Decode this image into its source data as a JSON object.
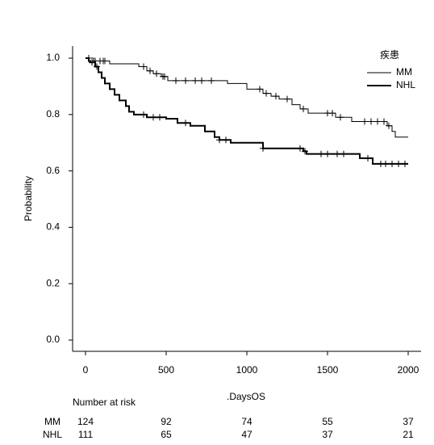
{
  "chart_data": {
    "type": "step",
    "xlabel": ".DaysOS",
    "ylabel": "Probability",
    "xlim": [
      -80,
      2080
    ],
    "ylim": [
      -0.04,
      1.043
    ],
    "xticks": [
      0,
      500,
      1000,
      1500,
      2000
    ],
    "yticks": [
      {
        "value": 0,
        "label": "0.0"
      },
      {
        "value": 0.2,
        "label": "0.2"
      },
      {
        "value": 0.4,
        "label": "0.4"
      },
      {
        "value": 0.6,
        "label": "0.6"
      },
      {
        "value": 0.8,
        "label": "0.8"
      },
      {
        "value": 1,
        "label": "1.0"
      }
    ],
    "legend": {
      "title": "疾患",
      "position": "top-right"
    },
    "series": [
      {
        "name": "MM",
        "color": "#000000",
        "width": 1,
        "x": [
          0,
          50,
          150,
          330,
          380,
          420,
          470,
          510,
          880,
          1000,
          1100,
          1150,
          1200,
          1280,
          1330,
          1380,
          1550,
          1650,
          1870,
          1900,
          1920,
          2000
        ],
        "values": [
          1.0,
          0.99,
          0.98,
          0.97,
          0.955,
          0.945,
          0.935,
          0.92,
          0.91,
          0.89,
          0.875,
          0.865,
          0.855,
          0.835,
          0.82,
          0.805,
          0.79,
          0.775,
          0.76,
          0.74,
          0.72,
          0.72
        ],
        "censored": {
          "x": [
            20,
            60,
            90,
            110,
            120,
            360,
            400,
            440,
            480,
            490,
            560,
            620,
            680,
            720,
            780,
            1080,
            1120,
            1180,
            1250,
            1350,
            1500,
            1530,
            1580,
            1730,
            1770,
            1810,
            1850,
            1880
          ],
          "values": [
            1.0,
            0.99,
            0.99,
            0.99,
            0.99,
            0.97,
            0.955,
            0.945,
            0.935,
            0.935,
            0.92,
            0.92,
            0.92,
            0.92,
            0.92,
            0.89,
            0.875,
            0.865,
            0.855,
            0.82,
            0.805,
            0.805,
            0.79,
            0.775,
            0.775,
            0.775,
            0.775,
            0.76
          ]
        }
      },
      {
        "name": "NHL",
        "color": "#000000",
        "width": 2,
        "x": [
          0,
          20,
          30,
          60,
          80,
          100,
          120,
          150,
          180,
          210,
          250,
          270,
          300,
          380,
          500,
          570,
          650,
          740,
          800,
          830,
          900,
          1100,
          1350,
          1370,
          1700,
          1780,
          2000
        ],
        "values": [
          1.0,
          0.99,
          0.985,
          0.97,
          0.95,
          0.93,
          0.91,
          0.89,
          0.87,
          0.85,
          0.83,
          0.81,
          0.8,
          0.79,
          0.785,
          0.77,
          0.76,
          0.74,
          0.72,
          0.71,
          0.7,
          0.68,
          0.67,
          0.66,
          0.645,
          0.625,
          0.625
        ],
        "censored": {
          "x": [
            40,
            70,
            360,
            420,
            460,
            620,
            830,
            870,
            1100,
            1330,
            1360,
            1460,
            1500,
            1560,
            1600,
            1750,
            1830,
            1860,
            1900,
            1940,
            1980
          ],
          "values": [
            0.985,
            0.97,
            0.8,
            0.79,
            0.79,
            0.77,
            0.71,
            0.71,
            0.68,
            0.68,
            0.67,
            0.66,
            0.66,
            0.66,
            0.66,
            0.645,
            0.625,
            0.625,
            0.625,
            0.625,
            0.625
          ]
        }
      }
    ],
    "risk_table": {
      "title": "Number at risk",
      "rows": [
        {
          "name": "MM",
          "values": [
            124,
            92,
            74,
            55,
            37
          ]
        },
        {
          "name": "NHL",
          "values": [
            111,
            65,
            47,
            37,
            21
          ]
        }
      ]
    }
  }
}
